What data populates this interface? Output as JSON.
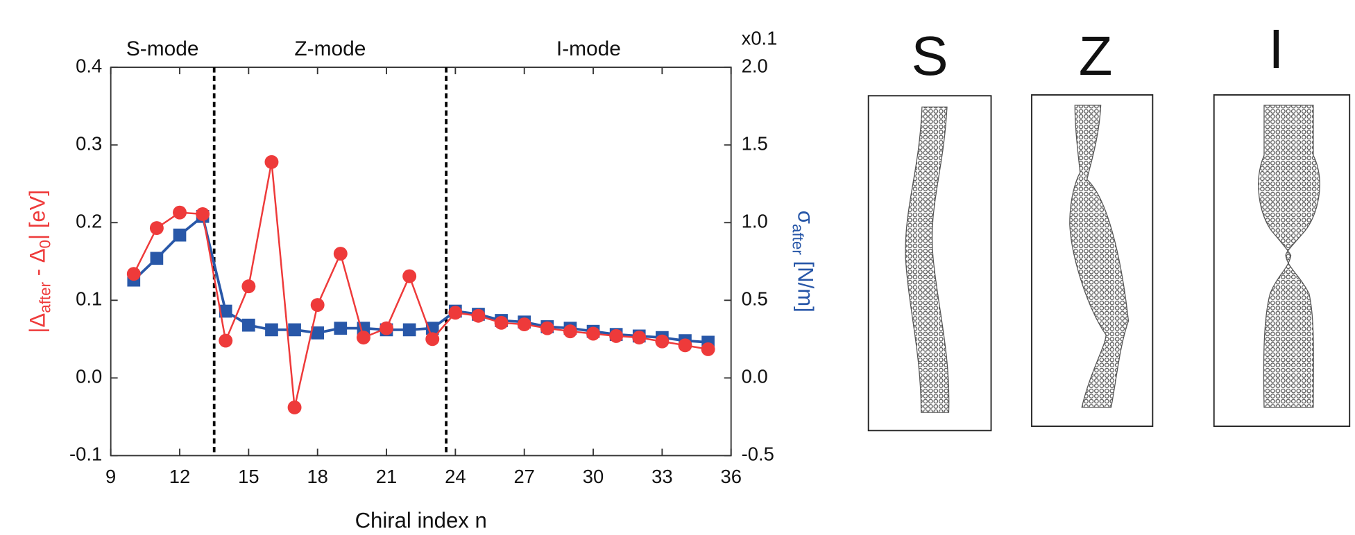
{
  "chart_data": {
    "type": "line",
    "x_label": "Chiral index n",
    "y_label_parts": [
      "|Δ",
      "after",
      " - Δ",
      "0",
      "| [eV]"
    ],
    "y2_label_parts": [
      "σ",
      "after",
      " [N/m]"
    ],
    "y2_annotation": "x0.1",
    "x": [
      10,
      11,
      12,
      13,
      14,
      15,
      16,
      17,
      18,
      19,
      20,
      21,
      22,
      23,
      24,
      25,
      26,
      27,
      28,
      29,
      30,
      31,
      32,
      33,
      34,
      35
    ],
    "series": [
      {
        "name": "Δ",
        "color": "#ee3a3a",
        "marker": "circle",
        "values": [
          0.134,
          0.193,
          0.213,
          0.211,
          0.048,
          0.118,
          0.278,
          -0.038,
          0.094,
          0.16,
          0.052,
          0.064,
          0.131,
          0.05,
          0.084,
          0.08,
          0.071,
          0.069,
          0.064,
          0.06,
          0.057,
          0.054,
          0.052,
          0.047,
          0.042,
          0.037
        ]
      },
      {
        "name": "σ",
        "color": "#2857a8",
        "marker": "square",
        "axis": "y2",
        "values": [
          0.63,
          0.77,
          0.92,
          1.04,
          0.43,
          0.34,
          0.31,
          0.31,
          0.29,
          0.32,
          0.32,
          0.31,
          0.31,
          0.32,
          0.43,
          0.41,
          0.37,
          0.36,
          0.33,
          0.32,
          0.3,
          0.28,
          0.27,
          0.26,
          0.24,
          0.23
        ]
      }
    ],
    "xlim": [
      9,
      36
    ],
    "xticks": [
      9,
      12,
      15,
      18,
      21,
      24,
      27,
      30,
      33,
      36
    ],
    "ylim": [
      -0.1,
      0.4
    ],
    "yticks": [
      -0.1,
      {
        "value": 0,
        "label": "0.0"
      },
      0.1,
      0.2,
      0.3,
      0.4
    ],
    "y2lim": [
      -0.5,
      2.0
    ],
    "y2ticks": [
      -0.5,
      {
        "value": 0,
        "label": "0.0"
      },
      0.5,
      {
        "value": 1,
        "label": "1.0"
      },
      1.5,
      {
        "value": 2,
        "label": "2.0"
      }
    ],
    "mode_labels": [
      "S-mode",
      "Z-mode",
      "I-mode"
    ],
    "mode_boundaries": [
      13.5,
      23.6
    ]
  },
  "panels": [
    "S",
    "Z",
    "I"
  ]
}
